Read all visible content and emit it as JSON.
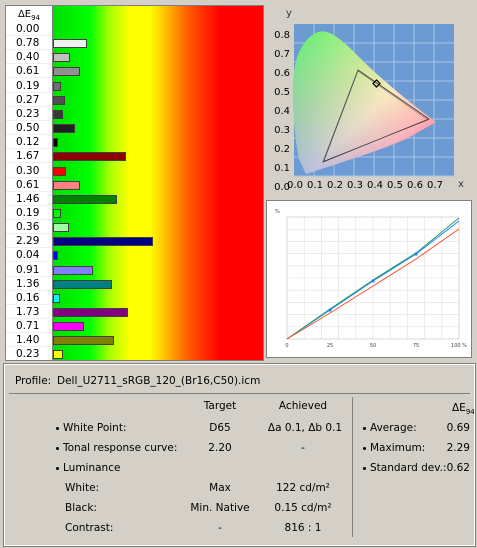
{
  "delta_e": {
    "header": "ΔE",
    "header_sub": "94",
    "rows": [
      {
        "value": "0.00",
        "num": 0.0,
        "color": "#ffffff"
      },
      {
        "value": "0.78",
        "num": 0.78,
        "color": "#f0f0f0"
      },
      {
        "value": "0.40",
        "num": 0.4,
        "color": "#c0c0c0"
      },
      {
        "value": "0.61",
        "num": 0.61,
        "color": "#909090"
      },
      {
        "value": "0.19",
        "num": 0.19,
        "color": "#707070"
      },
      {
        "value": "0.27",
        "num": 0.27,
        "color": "#505050"
      },
      {
        "value": "0.23",
        "num": 0.23,
        "color": "#383838"
      },
      {
        "value": "0.50",
        "num": 0.5,
        "color": "#202020"
      },
      {
        "value": "0.12",
        "num": 0.12,
        "color": "#000000"
      },
      {
        "value": "1.67",
        "num": 1.67,
        "color": "#8b0000"
      },
      {
        "value": "0.30",
        "num": 0.3,
        "color": "#ff0000"
      },
      {
        "value": "0.61",
        "num": 0.61,
        "color": "#ff8080"
      },
      {
        "value": "1.46",
        "num": 1.46,
        "color": "#008000"
      },
      {
        "value": "0.19",
        "num": 0.19,
        "color": "#00ff00"
      },
      {
        "value": "0.36",
        "num": 0.36,
        "color": "#a0ffa0"
      },
      {
        "value": "2.29",
        "num": 2.29,
        "color": "#000080"
      },
      {
        "value": "0.04",
        "num": 0.04,
        "color": "#0000ff"
      },
      {
        "value": "0.91",
        "num": 0.91,
        "color": "#8080ff"
      },
      {
        "value": "1.36",
        "num": 1.36,
        "color": "#008080"
      },
      {
        "value": "0.16",
        "num": 0.16,
        "color": "#00ffff"
      },
      {
        "value": "1.73",
        "num": 1.73,
        "color": "#800080"
      },
      {
        "value": "0.71",
        "num": 0.71,
        "color": "#ff00ff"
      },
      {
        "value": "1.40",
        "num": 1.4,
        "color": "#808000"
      },
      {
        "value": "0.23",
        "num": 0.23,
        "color": "#ffff00"
      }
    ]
  },
  "cie": {
    "y_axis": "y",
    "x_axis": "x",
    "y_ticks": [
      "0.8",
      "0.7",
      "0.6",
      "0.5",
      "0.4",
      "0.3",
      "0.2",
      "0.1",
      "0.0"
    ],
    "x_ticks": [
      "0.0",
      "0.1",
      "0.2",
      "0.3",
      "0.4",
      "0.5",
      "0.6",
      "0.7"
    ]
  },
  "trc": {
    "y_unit": "%",
    "x_ticks": [
      "0",
      "25",
      "50",
      "75",
      "100 %"
    ]
  },
  "info": {
    "profile_label": "Profile:",
    "profile_name": "Dell_U2711_sRGB_120_(Br16,C50).icm",
    "col_target": "Target",
    "col_achieved": "Achieved",
    "col_de": "ΔE",
    "col_de_sub": "94",
    "white_point_label": "White Point:",
    "white_point_target": "D65",
    "white_point_achieved": "Δa 0.1, Δb 0.1",
    "trc_label": "Tonal response curve:",
    "trc_target": "2.20",
    "trc_achieved": "-",
    "luminance_label": "Luminance",
    "white_label": "White:",
    "white_target": "Max",
    "white_achieved": "122 cd/m²",
    "black_label": "Black:",
    "black_target": "Min. Native",
    "black_achieved": "0.15 cd/m²",
    "contrast_label": "Contrast:",
    "contrast_target": "-",
    "contrast_achieved": "816 : 1",
    "average_label": "Average:",
    "average_value": "0.69",
    "maximum_label": "Maximum:",
    "maximum_value": "2.29",
    "stddev_label": "Standard dev.:",
    "stddev_value": "0.62"
  }
}
